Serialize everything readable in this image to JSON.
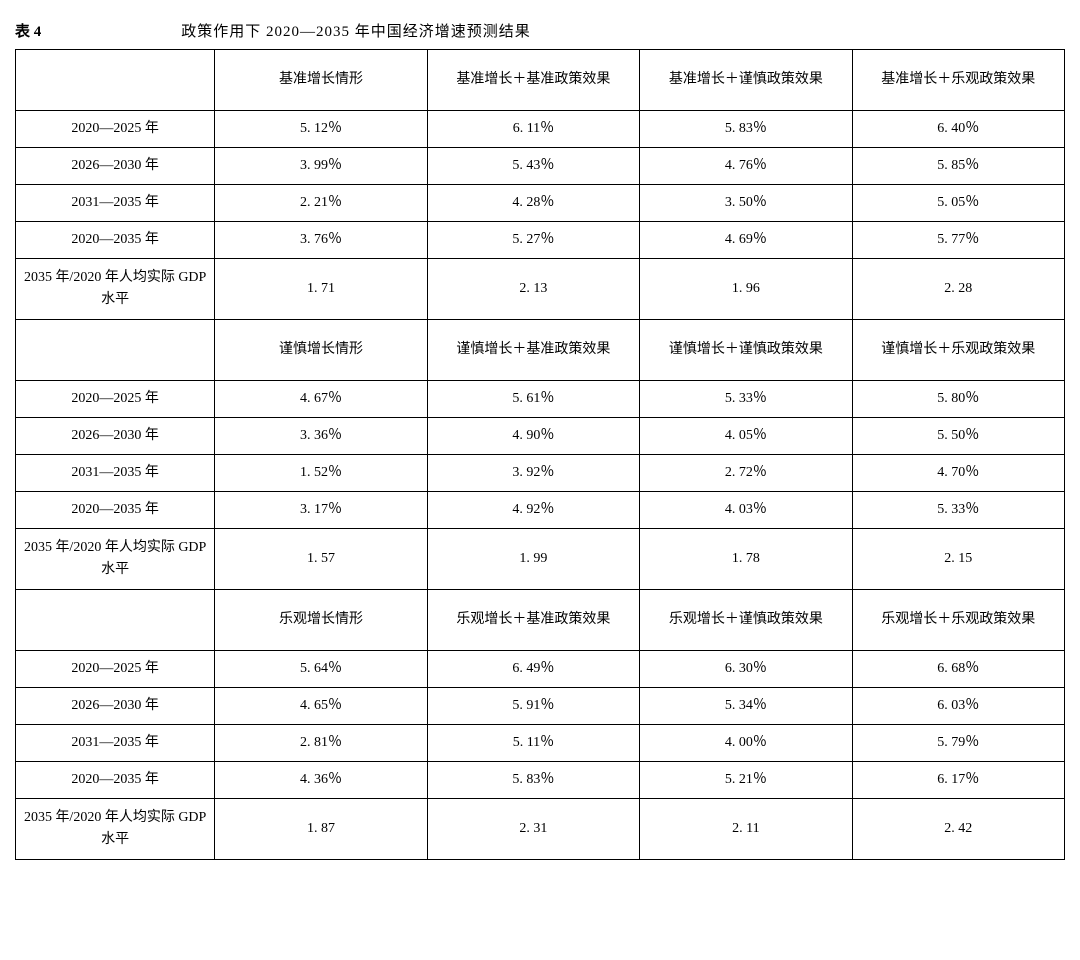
{
  "table_label": "表 4",
  "table_title": "政策作用下 2020—2035 年中国经济增速预测结果",
  "row_labels": {
    "p1": "2020—2025 年",
    "p2": "2026—2030 年",
    "p3": "2031—2035 年",
    "p4": "2020—2035 年",
    "gdp": "2035 年/2020 年人均实际 GDP 水平"
  },
  "sections": {
    "base": {
      "headers": [
        "基准增长情形",
        "基准增长＋基准政策效果",
        "基准增长＋谨慎政策效果",
        "基准增长＋乐观政策效果"
      ],
      "rows": {
        "p1": [
          "5. 12％",
          "6. 11％",
          "5. 83％",
          "6. 40％"
        ],
        "p2": [
          "3. 99％",
          "5. 43％",
          "4. 76％",
          "5. 85％"
        ],
        "p3": [
          "2. 21％",
          "4. 28％",
          "3. 50％",
          "5. 05％"
        ],
        "p4": [
          "3. 76％",
          "5. 27％",
          "4. 69％",
          "5. 77％"
        ],
        "gdp": [
          "1. 71",
          "2. 13",
          "1. 96",
          "2. 28"
        ]
      }
    },
    "cautious": {
      "headers": [
        "谨慎增长情形",
        "谨慎增长＋基准政策效果",
        "谨慎增长＋谨慎政策效果",
        "谨慎增长＋乐观政策效果"
      ],
      "rows": {
        "p1": [
          "4. 67％",
          "5. 61％",
          "5. 33％",
          "5. 80％"
        ],
        "p2": [
          "3. 36％",
          "4. 90％",
          "4. 05％",
          "5. 50％"
        ],
        "p3": [
          "1. 52％",
          "3. 92％",
          "2. 72％",
          "4. 70％"
        ],
        "p4": [
          "3. 17％",
          "4. 92％",
          "4. 03％",
          "5. 33％"
        ],
        "gdp": [
          "1. 57",
          "1. 99",
          "1. 78",
          "2. 15"
        ]
      }
    },
    "optimistic": {
      "headers": [
        "乐观增长情形",
        "乐观增长＋基准政策效果",
        "乐观增长＋谨慎政策效果",
        "乐观增长＋乐观政策效果"
      ],
      "rows": {
        "p1": [
          "5. 64％",
          "6. 49％",
          "6. 30％",
          "6. 68％"
        ],
        "p2": [
          "4. 65％",
          "5. 91％",
          "5. 34％",
          "6. 03％"
        ],
        "p3": [
          "2. 81％",
          "5. 11％",
          "4. 00％",
          "5. 79％"
        ],
        "p4": [
          "4. 36％",
          "5. 83％",
          "5. 21％",
          "6. 17％"
        ],
        "gdp": [
          "1. 87",
          "2. 31",
          "2. 11",
          "2. 42"
        ]
      }
    }
  }
}
